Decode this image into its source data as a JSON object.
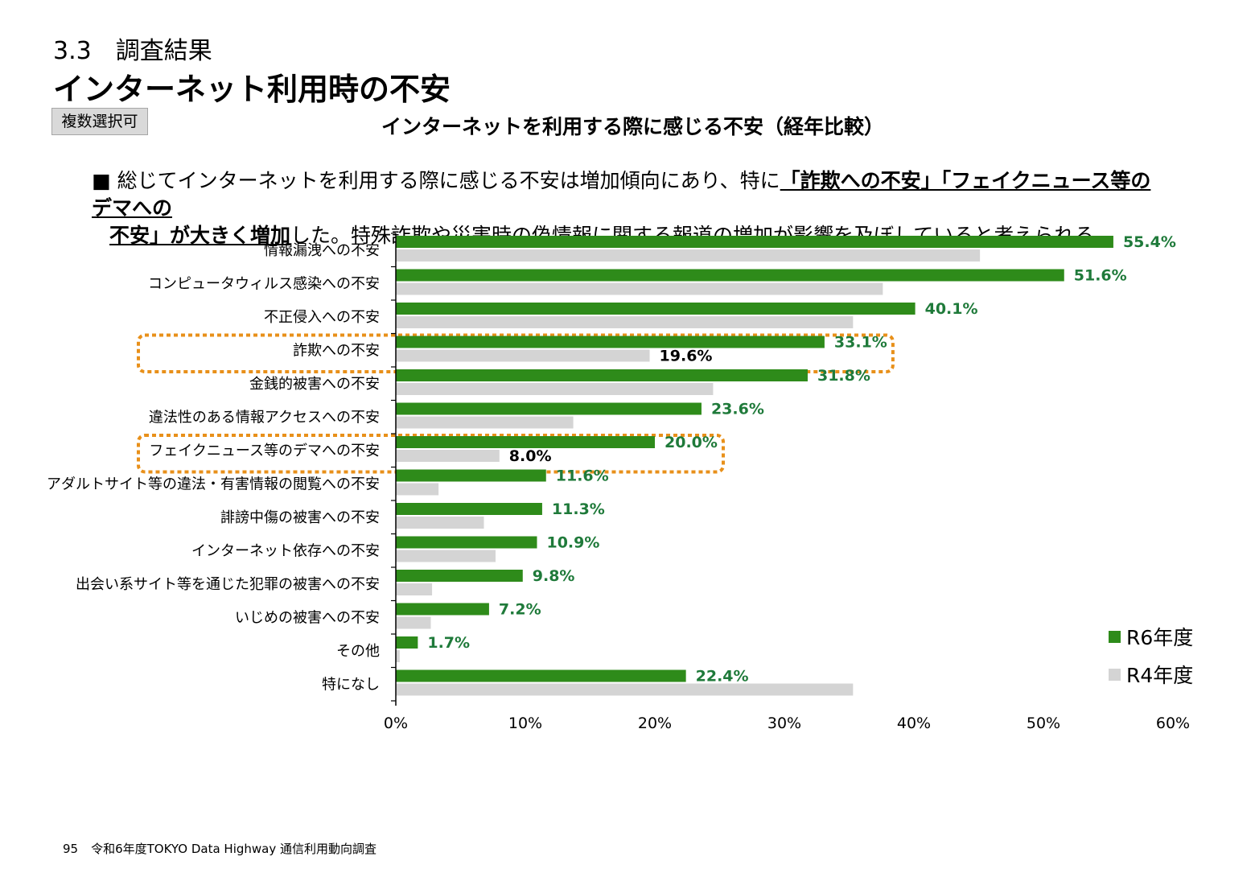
{
  "header": {
    "section": "3.3　調査結果",
    "title": "インターネット利用時の不安",
    "badge": "複数選択可"
  },
  "summary": {
    "bullet": "■",
    "text_1": "総じてインターネットを利用する際に感じる不安は増加傾向にあり、特に",
    "highlight_1": "「詐欺への不安」「フェイクニュース等のデマへの",
    "highlight_2": "不安」が大きく増加",
    "text_2": "した。特殊詐欺や災害時の偽情報に関する報道の増加が影響を及ぼしていると考えられる。"
  },
  "chart_data": {
    "type": "bar",
    "orientation": "horizontal",
    "title": "インターネットを利用する際に感じる不安（経年比較）",
    "categories": [
      "情報漏洩への不安",
      "コンピュータウィルス感染への不安",
      "不正侵入への不安",
      "詐欺への不安",
      "金銭的被害への不安",
      "違法性のある情報アクセスへの不安",
      "フェイクニュース等のデマへの不安",
      "アダルトサイト等の違法・有害情報の閲覧への不安",
      "誹謗中傷の被害への不安",
      "インターネット依存への不安",
      "出会い系サイト等を通じた犯罪の被害への不安",
      "いじめの被害への不安",
      "その他",
      "特になし"
    ],
    "series": [
      {
        "name": "R6年度",
        "color": "#2e8b1a",
        "label_color": "#1f7a3a",
        "values": [
          55.4,
          51.6,
          40.1,
          33.1,
          31.8,
          23.6,
          20.0,
          11.6,
          11.3,
          10.9,
          9.8,
          7.2,
          1.7,
          22.4
        ],
        "labels": [
          "55.4%",
          "51.6%",
          "40.1%",
          "33.1%",
          "31.8%",
          "23.6%",
          "20.0%",
          "11.6%",
          "11.3%",
          "10.9%",
          "9.8%",
          "7.2%",
          "1.7%",
          "22.4%"
        ]
      },
      {
        "name": "R4年度",
        "color": "#d4d4d4",
        "label_color": "#000000",
        "values": [
          45.1,
          37.6,
          35.3,
          19.6,
          24.5,
          13.7,
          8.0,
          3.3,
          6.8,
          7.7,
          2.8,
          2.7,
          0.3,
          35.3
        ],
        "labels": [
          "",
          "",
          "",
          "19.6%",
          "",
          "",
          "8.0%",
          "",
          "",
          "",
          "",
          "",
          "",
          ""
        ]
      }
    ],
    "highlighted_categories": [
      3,
      6
    ],
    "highlight_color": "#e8901a",
    "xlim": [
      0,
      60
    ],
    "xticks": [
      "0%",
      "10%",
      "20%",
      "30%",
      "40%",
      "50%",
      "60%"
    ],
    "legend_position": "bottom-right"
  },
  "footer": {
    "page": "95",
    "source": "令和6年度TOKYO Data Highway 通信利用動向調査"
  }
}
